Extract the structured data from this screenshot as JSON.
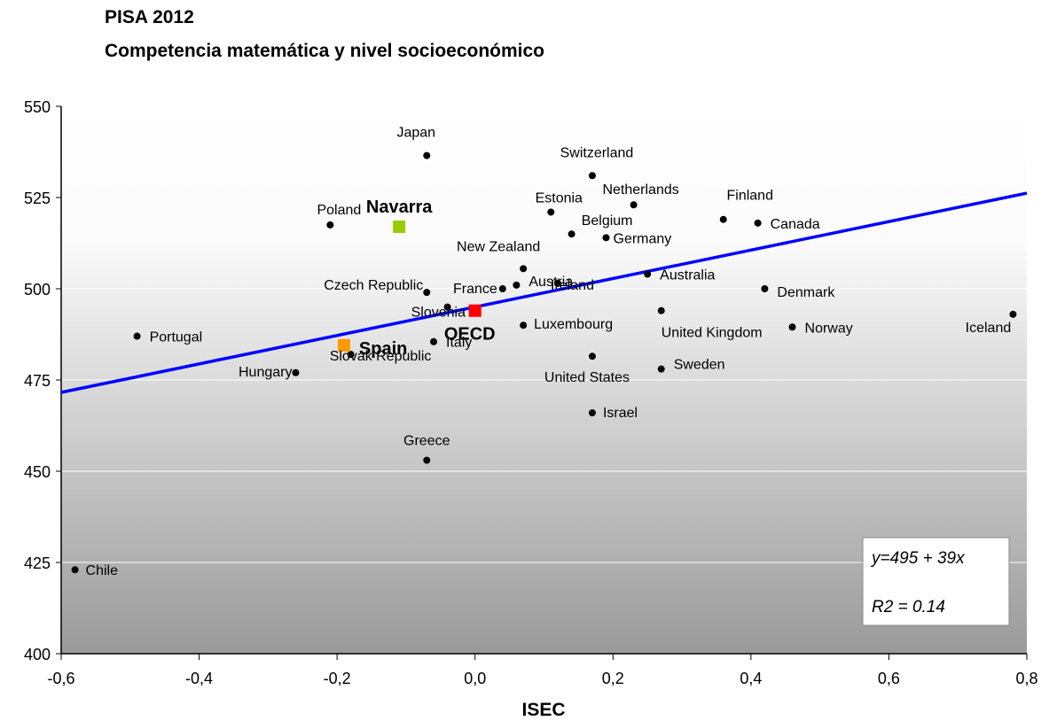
{
  "title": "PISA 2012",
  "subtitle": "Competencia matemática y nivel socioeconómico",
  "chart_data": {
    "type": "scatter",
    "xlabel": "ISEC",
    "ylabel": "",
    "xlim": [
      -0.6,
      0.8
    ],
    "ylim": [
      400,
      550
    ],
    "x_ticks": [
      "-0,6",
      "-0,4",
      "-0,2",
      "0,0",
      "0,2",
      "0,4",
      "0,6",
      "0,8"
    ],
    "y_ticks": [
      "400",
      "425",
      "450",
      "475",
      "500",
      "525",
      "550"
    ],
    "grid": "horizontal",
    "background": "vertical gradient white to grey",
    "points": [
      {
        "name": "Japan",
        "x": -0.07,
        "y": 536.5,
        "color": "#000000",
        "marker": "circle"
      },
      {
        "name": "Switzerland",
        "x": 0.17,
        "y": 531,
        "color": "#000000",
        "marker": "circle"
      },
      {
        "name": "Netherlands",
        "x": 0.23,
        "y": 523,
        "color": "#000000",
        "marker": "circle"
      },
      {
        "name": "Finland",
        "x": 0.36,
        "y": 519,
        "color": "#000000",
        "marker": "circle"
      },
      {
        "name": "Canada",
        "x": 0.41,
        "y": 518,
        "color": "#000000",
        "marker": "circle"
      },
      {
        "name": "Estonia",
        "x": 0.11,
        "y": 521,
        "color": "#000000",
        "marker": "circle"
      },
      {
        "name": "Poland",
        "x": -0.21,
        "y": 517.5,
        "color": "#000000",
        "marker": "circle"
      },
      {
        "name": "Belgium",
        "x": 0.14,
        "y": 515,
        "color": "#000000",
        "marker": "circle"
      },
      {
        "name": "Germany",
        "x": 0.19,
        "y": 514,
        "color": "#000000",
        "marker": "circle"
      },
      {
        "name": "New Zealand",
        "x": 0.07,
        "y": 505.5,
        "color": "#000000",
        "marker": "circle"
      },
      {
        "name": "Austria",
        "x": 0.06,
        "y": 501,
        "color": "#000000",
        "marker": "circle"
      },
      {
        "name": "Australia",
        "x": 0.25,
        "y": 504,
        "color": "#000000",
        "marker": "circle"
      },
      {
        "name": "Czech Republic",
        "x": -0.07,
        "y": 499,
        "color": "#000000",
        "marker": "circle"
      },
      {
        "name": "France",
        "x": 0.04,
        "y": 500,
        "color": "#000000",
        "marker": "circle"
      },
      {
        "name": "Slovenia",
        "x": -0.04,
        "y": 495,
        "color": "#000000",
        "marker": "circle"
      },
      {
        "name": "Ireland",
        "x": 0.12,
        "y": 501.5,
        "color": "#000000",
        "marker": "circle"
      },
      {
        "name": "Denmark",
        "x": 0.42,
        "y": 500,
        "color": "#000000",
        "marker": "circle"
      },
      {
        "name": "United Kingdom",
        "x": 0.27,
        "y": 494,
        "color": "#000000",
        "marker": "circle"
      },
      {
        "name": "Luxembourg",
        "x": 0.07,
        "y": 490,
        "color": "#000000",
        "marker": "circle"
      },
      {
        "name": "Norway",
        "x": 0.46,
        "y": 489.5,
        "color": "#000000",
        "marker": "circle"
      },
      {
        "name": "Iceland",
        "x": 0.78,
        "y": 493,
        "color": "#000000",
        "marker": "circle"
      },
      {
        "name": "Portugal",
        "x": -0.49,
        "y": 487,
        "color": "#000000",
        "marker": "circle"
      },
      {
        "name": "Italy",
        "x": -0.06,
        "y": 485.5,
        "color": "#000000",
        "marker": "circle"
      },
      {
        "name": "Slovak Republic",
        "x": -0.18,
        "y": 482,
        "color": "#000000",
        "marker": "circle"
      },
      {
        "name": "Hungary",
        "x": -0.26,
        "y": 477,
        "color": "#000000",
        "marker": "circle"
      },
      {
        "name": "United States",
        "x": 0.17,
        "y": 481.5,
        "color": "#000000",
        "marker": "circle"
      },
      {
        "name": "Sweden",
        "x": 0.27,
        "y": 478,
        "color": "#000000",
        "marker": "circle"
      },
      {
        "name": "Israel",
        "x": 0.17,
        "y": 466,
        "color": "#000000",
        "marker": "circle"
      },
      {
        "name": "Greece",
        "x": -0.07,
        "y": 453,
        "color": "#000000",
        "marker": "circle"
      },
      {
        "name": "Chile",
        "x": -0.58,
        "y": 423,
        "color": "#000000",
        "marker": "circle"
      },
      {
        "name": "Navarra",
        "x": -0.11,
        "y": 517,
        "color": "#99cc00",
        "marker": "square",
        "bold": true
      },
      {
        "name": "OECD",
        "x": 0.0,
        "y": 494,
        "color": "#ff0000",
        "marker": "square",
        "bold": true
      },
      {
        "name": "Spain",
        "x": -0.19,
        "y": 484.5,
        "color": "#ff9900",
        "marker": "square",
        "bold": true
      }
    ],
    "trendline": {
      "intercept": 495,
      "slope": 39,
      "color": "#0000ff"
    },
    "annotation": {
      "equation": "y=495 + 39x",
      "r2": "R2 = 0.14"
    }
  }
}
